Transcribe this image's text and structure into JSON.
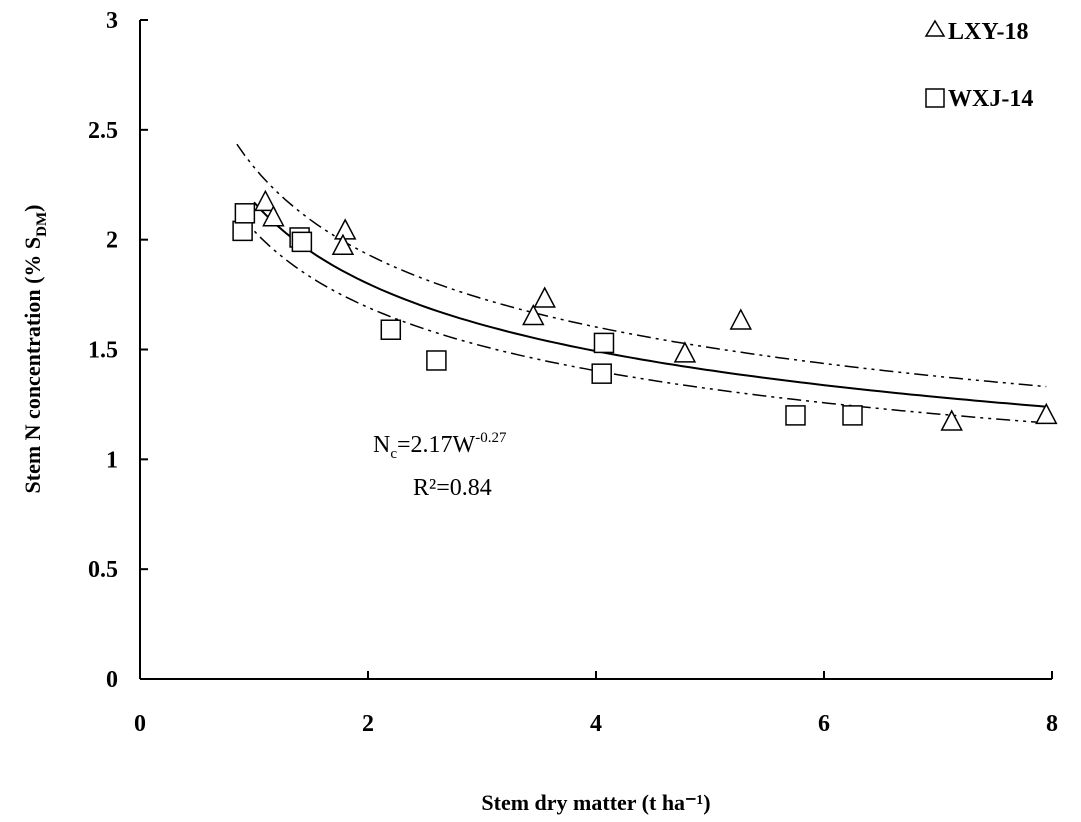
{
  "chart_data": {
    "type": "scatter",
    "xlabel": "Stem dry matter (t ha⁻¹)",
    "ylabel": "Stem N concentration (% S",
    "ylabel_sub": "DM",
    "ylabel_close": ")",
    "xlim": [
      0,
      8
    ],
    "ylim": [
      0,
      3
    ],
    "x_ticks": [
      0,
      2,
      4,
      6,
      8
    ],
    "x_tick_labels": [
      "0",
      "2",
      "4",
      "6",
      "8"
    ],
    "y_ticks": [
      0,
      0.5,
      1,
      1.5,
      2,
      2.5,
      3
    ],
    "y_tick_labels": [
      "0",
      "0.5",
      "1",
      "1.5",
      "2",
      "2.5",
      "3"
    ],
    "grid": false,
    "legend_position": "top-right",
    "series": [
      {
        "name": "LXY-18",
        "marker": "triangle",
        "points": [
          {
            "x": 1.1,
            "y": 2.17
          },
          {
            "x": 1.17,
            "y": 2.1
          },
          {
            "x": 1.8,
            "y": 2.04
          },
          {
            "x": 1.78,
            "y": 1.97
          },
          {
            "x": 3.45,
            "y": 1.65
          },
          {
            "x": 3.55,
            "y": 1.73
          },
          {
            "x": 4.78,
            "y": 1.48
          },
          {
            "x": 5.27,
            "y": 1.63
          },
          {
            "x": 7.12,
            "y": 1.17
          },
          {
            "x": 7.95,
            "y": 1.2
          }
        ]
      },
      {
        "name": "WXJ-14",
        "marker": "square",
        "points": [
          {
            "x": 0.9,
            "y": 2.04
          },
          {
            "x": 0.92,
            "y": 2.12
          },
          {
            "x": 1.4,
            "y": 2.01
          },
          {
            "x": 1.42,
            "y": 1.99
          },
          {
            "x": 2.2,
            "y": 1.59
          },
          {
            "x": 2.6,
            "y": 1.45
          },
          {
            "x": 4.05,
            "y": 1.39
          },
          {
            "x": 4.07,
            "y": 1.53
          },
          {
            "x": 5.75,
            "y": 1.2
          },
          {
            "x": 6.25,
            "y": 1.2
          }
        ]
      }
    ],
    "fit": {
      "coefficient": 2.17,
      "exponent": -0.27,
      "x_range": [
        0.85,
        7.95
      ],
      "upper_coefficient": 2.33,
      "lower_coefficient": 2.04
    },
    "annotations": {
      "equation_main": "N",
      "equation_sub": "c",
      "equation_mid": "=2.17W",
      "equation_sup": "-0.27",
      "r_squared": "R²=0.84"
    }
  }
}
